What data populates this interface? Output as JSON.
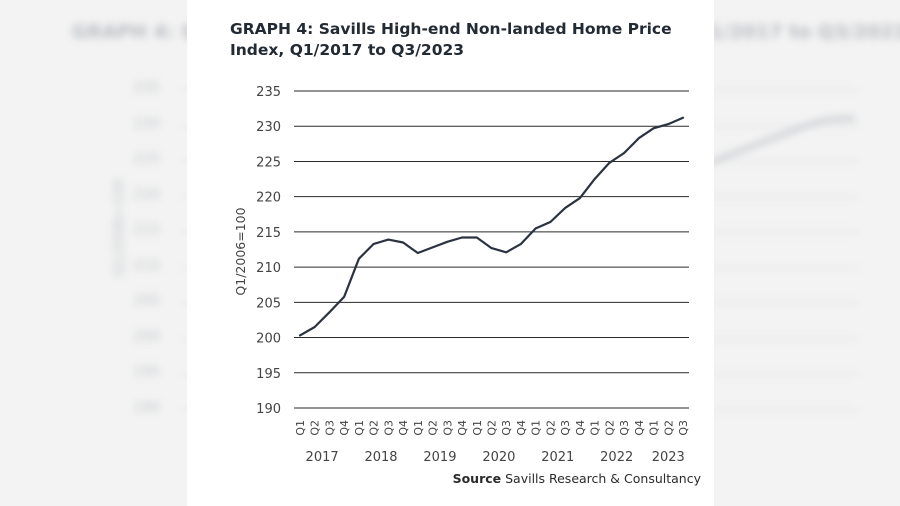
{
  "chart_data": {
    "type": "line",
    "title": "GRAPH 4: Savills High-end Non-landed Home Price Index, Q1/2017 to Q3/2023",
    "ylabel": "Q1/2006=100",
    "xlabel": "",
    "ylim": [
      190,
      235
    ],
    "y_ticks": [
      190,
      195,
      200,
      205,
      210,
      215,
      220,
      225,
      230,
      235
    ],
    "grid": true,
    "x": [
      "Q1",
      "Q2",
      "Q3",
      "Q4",
      "Q1",
      "Q2",
      "Q3",
      "Q4",
      "Q1",
      "Q2",
      "Q3",
      "Q4",
      "Q1",
      "Q2",
      "Q3",
      "Q4",
      "Q1",
      "Q2",
      "Q3",
      "Q4",
      "Q1",
      "Q2",
      "Q3",
      "Q4",
      "Q1",
      "Q2",
      "Q3"
    ],
    "year_groups": [
      {
        "label": "2017",
        "start": 0,
        "end": 3
      },
      {
        "label": "2018",
        "start": 4,
        "end": 7
      },
      {
        "label": "2019",
        "start": 8,
        "end": 11
      },
      {
        "label": "2020",
        "start": 12,
        "end": 15
      },
      {
        "label": "2021",
        "start": 16,
        "end": 19
      },
      {
        "label": "2022",
        "start": 20,
        "end": 23
      },
      {
        "label": "2023",
        "start": 24,
        "end": 26
      }
    ],
    "series": [
      {
        "values": [
          200.3,
          201.5,
          203.6,
          205.8,
          211.2,
          213.3,
          213.9,
          213.5,
          212.0,
          212.8,
          213.6,
          214.2,
          214.2,
          212.7,
          212.1,
          213.3,
          215.5,
          216.4,
          218.4,
          219.8,
          222.5,
          224.8,
          226.2,
          228.3,
          229.7,
          230.3,
          231.2
        ],
        "color": "#2b3340"
      }
    ],
    "source_label": "Source",
    "source_text": " Savills Research & Consultancy"
  }
}
